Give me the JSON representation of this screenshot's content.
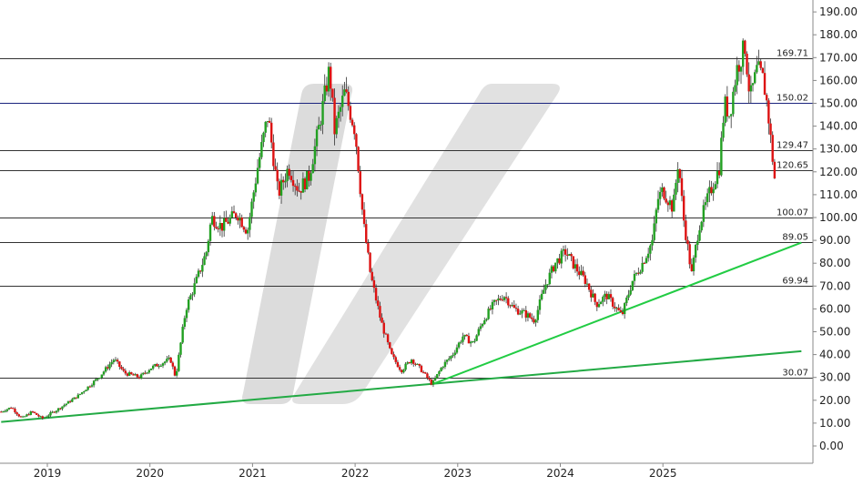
{
  "chart_data": {
    "type": "candlestick",
    "title": "",
    "xlabel": "",
    "ylabel": "",
    "ylim": [
      -5,
      193
    ],
    "y_ticks": [
      "190.00",
      "180.00",
      "170.00",
      "160.00",
      "150.00",
      "140.00",
      "130.00",
      "120.00",
      "110.00",
      "100.00",
      "90.00",
      "80.00",
      "70.00",
      "60.00",
      "50.00",
      "40.00",
      "30.00",
      "20.00",
      "10.00",
      "0.00"
    ],
    "x_ticks": [
      "2019",
      "2020",
      "2021",
      "2022",
      "2023",
      "2024",
      "2025"
    ],
    "grid": false,
    "levels": [
      {
        "label": "169.71",
        "value": 169.71,
        "color": "#333333"
      },
      {
        "label": "150.02",
        "value": 150.02,
        "color": "#1a237e"
      },
      {
        "label": "129.47",
        "value": 129.47,
        "color": "#333333"
      },
      {
        "label": "120.65",
        "value": 120.65,
        "color": "#333333"
      },
      {
        "label": "100.07",
        "value": 100.07,
        "color": "#333333"
      },
      {
        "label": "89.05",
        "value": 89.05,
        "color": "#333333"
      },
      {
        "label": "69.94",
        "value": 69.94,
        "color": "#333333"
      },
      {
        "label": "30.07",
        "value": 30.07,
        "color": "#333333"
      }
    ],
    "trendlines": [
      {
        "from": [
          2018.55,
          10.5
        ],
        "to": [
          2026.35,
          41.5
        ],
        "color": "#22aa44"
      },
      {
        "from": [
          2022.75,
          27.0
        ],
        "to": [
          2026.35,
          89.0
        ],
        "color": "#22cc44"
      }
    ],
    "price_path": [
      [
        2018.55,
        15
      ],
      [
        2018.65,
        17
      ],
      [
        2018.75,
        12
      ],
      [
        2018.85,
        15
      ],
      [
        2018.95,
        12
      ],
      [
        2019.1,
        16
      ],
      [
        2019.3,
        22
      ],
      [
        2019.5,
        30
      ],
      [
        2019.65,
        38
      ],
      [
        2019.75,
        32
      ],
      [
        2019.9,
        30
      ],
      [
        2020.0,
        34
      ],
      [
        2020.1,
        36
      ],
      [
        2020.2,
        38
      ],
      [
        2020.25,
        30
      ],
      [
        2020.35,
        60
      ],
      [
        2020.45,
        72
      ],
      [
        2020.55,
        85
      ],
      [
        2020.6,
        100
      ],
      [
        2020.7,
        96
      ],
      [
        2020.85,
        102
      ],
      [
        2020.95,
        94
      ],
      [
        2021.05,
        122
      ],
      [
        2021.15,
        145
      ],
      [
        2021.25,
        110
      ],
      [
        2021.35,
        122
      ],
      [
        2021.45,
        112
      ],
      [
        2021.55,
        118
      ],
      [
        2021.65,
        140
      ],
      [
        2021.75,
        165
      ],
      [
        2021.8,
        138
      ],
      [
        2021.9,
        155
      ],
      [
        2022.0,
        138
      ],
      [
        2022.08,
        98
      ],
      [
        2022.15,
        75
      ],
      [
        2022.25,
        55
      ],
      [
        2022.35,
        40
      ],
      [
        2022.45,
        33
      ],
      [
        2022.55,
        38
      ],
      [
        2022.65,
        33
      ],
      [
        2022.75,
        27
      ],
      [
        2022.85,
        35
      ],
      [
        2022.95,
        40
      ],
      [
        2023.05,
        48
      ],
      [
        2023.15,
        45
      ],
      [
        2023.25,
        55
      ],
      [
        2023.35,
        62
      ],
      [
        2023.45,
        66
      ],
      [
        2023.55,
        60
      ],
      [
        2023.65,
        58
      ],
      [
        2023.75,
        55
      ],
      [
        2023.85,
        70
      ],
      [
        2023.95,
        80
      ],
      [
        2024.05,
        85
      ],
      [
        2024.15,
        78
      ],
      [
        2024.25,
        72
      ],
      [
        2024.35,
        62
      ],
      [
        2024.45,
        66
      ],
      [
        2024.55,
        60
      ],
      [
        2024.6,
        57
      ],
      [
        2024.7,
        72
      ],
      [
        2024.8,
        80
      ],
      [
        2024.9,
        90
      ],
      [
        2024.95,
        108
      ],
      [
        2025.0,
        112
      ],
      [
        2025.1,
        104
      ],
      [
        2025.15,
        125
      ],
      [
        2025.2,
        100
      ],
      [
        2025.28,
        75
      ],
      [
        2025.35,
        96
      ],
      [
        2025.45,
        110
      ],
      [
        2025.55,
        122
      ],
      [
        2025.6,
        150
      ],
      [
        2025.65,
        145
      ],
      [
        2025.72,
        165
      ],
      [
        2025.8,
        175
      ],
      [
        2025.85,
        152
      ],
      [
        2025.92,
        165
      ],
      [
        2025.98,
        160
      ],
      [
        2026.02,
        148
      ],
      [
        2026.06,
        130
      ],
      [
        2026.1,
        112
      ]
    ]
  }
}
